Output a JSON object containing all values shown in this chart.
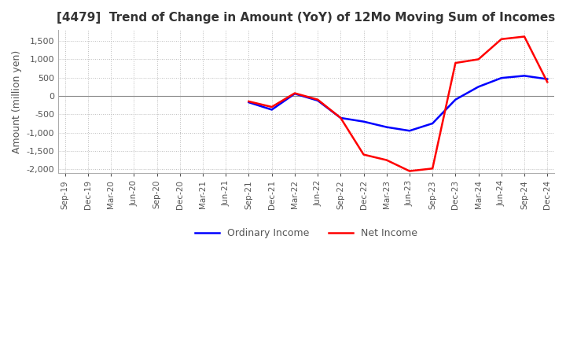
{
  "title": "[4479]  Trend of Change in Amount (YoY) of 12Mo Moving Sum of Incomes",
  "ylabel": "Amount (million yen)",
  "ylim": [
    -2100,
    1800
  ],
  "yticks": [
    -2000,
    -1500,
    -1000,
    -500,
    0,
    500,
    1000,
    1500
  ],
  "x_labels": [
    "Sep-19",
    "Dec-19",
    "Mar-20",
    "Jun-20",
    "Sep-20",
    "Dec-20",
    "Mar-21",
    "Jun-21",
    "Sep-21",
    "Dec-21",
    "Mar-22",
    "Jun-22",
    "Sep-22",
    "Dec-22",
    "Mar-23",
    "Jun-23",
    "Sep-23",
    "Dec-23",
    "Mar-24",
    "Jun-24",
    "Sep-24",
    "Dec-24"
  ],
  "ordinary_income": [
    null,
    null,
    null,
    null,
    null,
    null,
    null,
    null,
    -175,
    -375,
    60,
    -125,
    -600,
    -700,
    -850,
    -950,
    -750,
    -100,
    250,
    490,
    550,
    460
  ],
  "net_income": [
    null,
    null,
    null,
    null,
    null,
    null,
    null,
    null,
    -150,
    -300,
    75,
    -100,
    -600,
    -1600,
    -1750,
    -2050,
    -1980,
    900,
    1000,
    1550,
    1620,
    380
  ],
  "ordinary_color": "#0000ff",
  "net_color": "#ff0000",
  "grid_color": "#bbbbbb",
  "zero_line_color": "#888888",
  "background_color": "#ffffff",
  "title_color": "#333333",
  "tick_color": "#555555"
}
